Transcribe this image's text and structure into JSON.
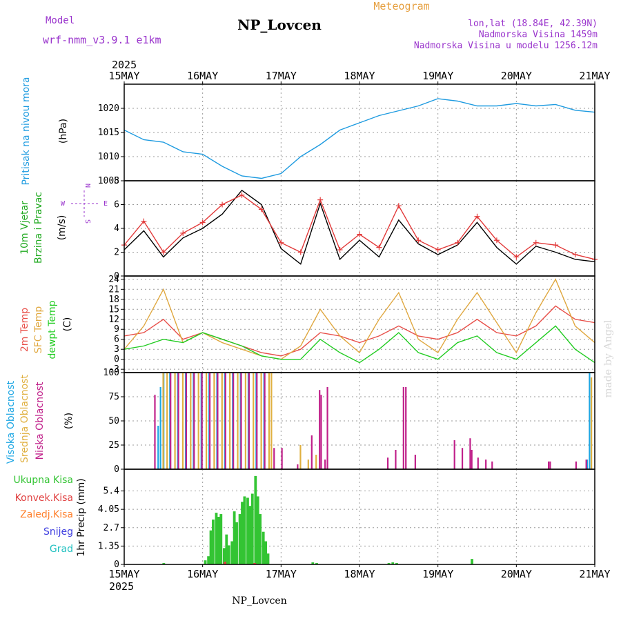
{
  "header": {
    "model_label": "Model",
    "model_value": "wrf-nmm_v3.9.1 e1km",
    "station": "NP_Lovcen",
    "product": "Meteogram",
    "lonlat": "lon,lat (18.84E, 42.39N)",
    "altitude": "Nadmorska Visina 1459m",
    "model_altitude": "Nadmorska Visina u modelu 1256.12m",
    "footer_station": "NP_Lovcen",
    "credit": "made by Angel",
    "year": "2025"
  },
  "colors": {
    "pressure": "#1e9be0",
    "wind_speed": "#000000",
    "wind_gust": "#e23a3a",
    "temp_2m": "#e8504a",
    "temp_sfc": "#e0a840",
    "dewpoint": "#22cc22",
    "cloud_high": "#1ea7e4",
    "cloud_mid": "#e0b040",
    "cloud_low": "#c0208a",
    "precip_total": "#33c433",
    "precip_conv": "#e04040",
    "precip_frz": "#ff7f2a",
    "precip_snow": "#4040e0",
    "precip_grad": "#20c0c0",
    "label_purple": "#9933cc",
    "label_orange": "#e6a040"
  },
  "chart_data": [
    {
      "type": "line",
      "x_unit": "days since 15MAY 00UTC",
      "x": [
        0,
        0.25,
        0.5,
        0.75,
        1.0,
        1.25,
        1.5,
        1.75,
        2.0,
        2.25,
        2.5,
        2.75,
        3.0,
        3.25,
        3.5,
        3.75,
        4.0,
        4.25,
        4.5,
        4.75,
        5.0,
        5.25,
        5.5,
        5.75,
        6.0
      ],
      "series": [
        {
          "name": "Pritisak na nivou mora",
          "values": [
            1015.5,
            1013.5,
            1013,
            1011,
            1010.5,
            1008,
            1006,
            1005.5,
            1006.5,
            1010,
            1012.5,
            1015.5,
            1017,
            1018.5,
            1019.5,
            1020.5,
            1022,
            1021.5,
            1020.5,
            1020.5,
            1021,
            1020.5,
            1020.8,
            1019.6,
            1019.2
          ]
        }
      ],
      "ylabel": "(hPa)",
      "ylim": [
        1005,
        1025
      ],
      "yticks": [
        1005,
        1010,
        1015,
        1020
      ],
      "grid": true
    },
    {
      "type": "line",
      "x_unit": "days since 15MAY 00UTC",
      "x": [
        0,
        0.25,
        0.5,
        0.75,
        1.0,
        1.25,
        1.5,
        1.75,
        2.0,
        2.25,
        2.5,
        2.75,
        3.0,
        3.25,
        3.5,
        3.75,
        4.0,
        4.25,
        4.5,
        4.75,
        5.0,
        5.25,
        5.5,
        5.75,
        6.0
      ],
      "series": [
        {
          "name": "10m Vjetar",
          "values": [
            2.2,
            3.8,
            1.6,
            3.2,
            4.0,
            5.2,
            7.2,
            6.0,
            2.3,
            1.0,
            6.1,
            1.4,
            3.0,
            1.6,
            4.7,
            2.7,
            1.8,
            2.6,
            4.5,
            2.4,
            1.0,
            2.5,
            2.0,
            1.4,
            1.2
          ]
        },
        {
          "name": "Brzina i Pravac",
          "values": [
            2.6,
            4.6,
            2.0,
            3.6,
            4.5,
            6.0,
            6.8,
            5.6,
            2.8,
            2.0,
            6.4,
            2.2,
            3.5,
            2.4,
            5.9,
            3.0,
            2.2,
            2.8,
            5.0,
            3.0,
            1.6,
            2.8,
            2.6,
            1.8,
            1.4
          ]
        }
      ],
      "ylabel": "(m/s)",
      "ylim": [
        0,
        8
      ],
      "yticks": [
        0,
        2,
        4,
        6,
        8
      ],
      "grid": true
    },
    {
      "type": "line",
      "x_unit": "days since 15MAY 00UTC",
      "x": [
        0,
        0.25,
        0.5,
        0.75,
        1.0,
        1.25,
        1.5,
        1.75,
        2.0,
        2.25,
        2.5,
        2.75,
        3.0,
        3.25,
        3.5,
        3.75,
        4.0,
        4.25,
        4.5,
        4.75,
        5.0,
        5.25,
        5.5,
        5.75,
        6.0
      ],
      "series": [
        {
          "name": "2m Temp",
          "values": [
            7,
            8,
            12,
            6,
            8,
            6,
            4,
            2,
            1,
            3,
            8,
            7,
            5,
            7,
            10,
            7,
            6,
            8,
            12,
            8,
            7,
            10,
            16,
            12,
            11
          ]
        },
        {
          "name": "SFC Temp",
          "values": [
            3,
            10,
            21,
            5,
            8,
            5,
            3,
            1,
            0,
            4,
            15,
            7,
            2,
            12,
            20,
            6,
            2,
            12,
            20,
            11,
            2,
            14,
            24,
            10,
            5
          ]
        },
        {
          "name": "dewpt Temp",
          "values": [
            3,
            4,
            6,
            5,
            8,
            6,
            4,
            1,
            0,
            0,
            6,
            2,
            -1,
            3,
            8,
            2,
            0,
            5,
            7,
            2,
            0,
            5,
            10,
            3,
            -1
          ]
        }
      ],
      "ylabel": "(C)",
      "ylim": [
        -4,
        25
      ],
      "yticks": [
        -3,
        0,
        3,
        6,
        9,
        12,
        15,
        18,
        21,
        24
      ],
      "grid": true
    },
    {
      "type": "bar",
      "x_unit": "days since 15MAY 00UTC",
      "series": [
        {
          "name": "Visoka Oblacnost",
          "x": [
            0.45,
            0.48,
            0.52,
            0.6,
            0.7,
            0.8,
            0.9,
            1.0,
            1.1,
            1.2,
            1.3,
            1.4,
            1.5,
            1.6,
            1.7,
            1.8,
            5.92,
            5.95
          ],
          "values": [
            45,
            85,
            100,
            100,
            100,
            100,
            100,
            100,
            100,
            100,
            100,
            100,
            100,
            100,
            100,
            100,
            10,
            100
          ]
        },
        {
          "name": "Srednja Oblacnost",
          "x": [
            0.5,
            0.55,
            0.65,
            0.75,
            0.85,
            0.95,
            1.05,
            1.15,
            1.25,
            1.35,
            1.45,
            1.55,
            1.65,
            1.75,
            1.85,
            1.88,
            2.25,
            2.35,
            2.45,
            5.96
          ],
          "values": [
            100,
            100,
            100,
            100,
            100,
            100,
            100,
            100,
            100,
            100,
            100,
            100,
            100,
            100,
            100,
            100,
            25,
            10,
            15,
            95
          ]
        },
        {
          "name": "Niska Oblacnost",
          "x": [
            0.38,
            0.58,
            0.68,
            0.78,
            0.88,
            0.98,
            1.08,
            1.18,
            1.28,
            1.38,
            1.48,
            1.58,
            1.68,
            1.78,
            1.9,
            2.0,
            2.2,
            2.38,
            2.48,
            2.5,
            2.55,
            2.58,
            3.35,
            3.45,
            3.55,
            3.58,
            3.7,
            4.2,
            4.3,
            4.4,
            4.42,
            4.5,
            4.6,
            4.68,
            5.4,
            5.42,
            5.75,
            5.88
          ],
          "values": [
            77,
            100,
            100,
            100,
            100,
            100,
            100,
            100,
            100,
            100,
            100,
            100,
            100,
            100,
            22,
            22,
            5,
            35,
            82,
            77,
            10,
            85,
            12,
            20,
            85,
            85,
            15,
            30,
            22,
            32,
            20,
            12,
            10,
            8,
            8,
            8,
            8,
            10
          ]
        }
      ],
      "ylabel": "(%)",
      "ylim": [
        0,
        100
      ],
      "yticks": [
        0,
        25,
        50,
        75,
        100
      ],
      "grid": true
    },
    {
      "type": "bar",
      "x_unit": "days since 15MAY 00UTC",
      "series": [
        {
          "name": "Ukupna Kisa",
          "x": [
            0.5,
            1.03,
            1.07,
            1.1,
            1.13,
            1.17,
            1.2,
            1.23,
            1.27,
            1.3,
            1.33,
            1.37,
            1.4,
            1.43,
            1.47,
            1.5,
            1.53,
            1.57,
            1.6,
            1.63,
            1.67,
            1.7,
            1.73,
            1.77,
            1.8,
            1.83,
            2.4,
            2.45,
            3.37,
            3.42,
            3.47,
            4.43
          ],
          "values": [
            0.1,
            0.3,
            0.6,
            2.5,
            3.3,
            3.8,
            3.5,
            3.7,
            1.2,
            2.2,
            1.4,
            1.7,
            3.9,
            3.1,
            3.7,
            4.6,
            5.0,
            4.9,
            4.3,
            5.2,
            6.5,
            5.0,
            3.7,
            2.4,
            1.7,
            0.8,
            0.15,
            0.1,
            0.1,
            0.15,
            0.1,
            0.4
          ]
        },
        {
          "name": "Konvek.Kisa",
          "x": [
            1.27,
            1.65
          ],
          "values": [
            0.2,
            0.1
          ]
        },
        {
          "name": "Zaledj.Kisa",
          "x": [],
          "values": []
        },
        {
          "name": "Snijeg",
          "x": [],
          "values": []
        },
        {
          "name": "Grad",
          "x": [],
          "values": []
        }
      ],
      "ylabel": "1hr Precip (mm)",
      "ylim": [
        0,
        7
      ],
      "yticks": [
        0,
        1.35,
        2.7,
        4.05,
        5.4
      ],
      "ytick_labels": [
        "0",
        "1.35",
        "2.7",
        "4.05",
        "5.4"
      ],
      "grid": true
    }
  ],
  "axis": {
    "x_ticks": [
      "15MAY",
      "16MAY",
      "17MAY",
      "18MAY",
      "19MAY",
      "20MAY",
      "21MAY"
    ],
    "year_top": "2025",
    "year_bottom": "2025"
  },
  "panels": {
    "pressure": {
      "title": "Pritisak na nivou mora",
      "unit": "(hPa)"
    },
    "wind": {
      "title1": "10m Vjetar",
      "title2": "Brzina i Pravac",
      "unit": "(m/s)",
      "compass_n": "N",
      "compass_s": "S",
      "compass_e": "E",
      "compass_w": "W"
    },
    "temp": {
      "label_2m": "2m Temp",
      "label_sfc": "SFC Temp",
      "label_dew": "dewpt Temp",
      "unit": "(C)"
    },
    "cloud": {
      "label_high": "Visoka Oblacnost",
      "label_mid": "Srednja Oblacnost",
      "label_low": "Niska Oblacnost",
      "unit": "(%)"
    },
    "precip": {
      "label_total": "Ukupna Kisa",
      "label_conv": "Konvek.Kisa",
      "label_frz": "Zaledj.Kisa",
      "label_snow": "Snijeg",
      "label_grad": "Grad",
      "unit": "1hr Precip (mm)"
    }
  }
}
